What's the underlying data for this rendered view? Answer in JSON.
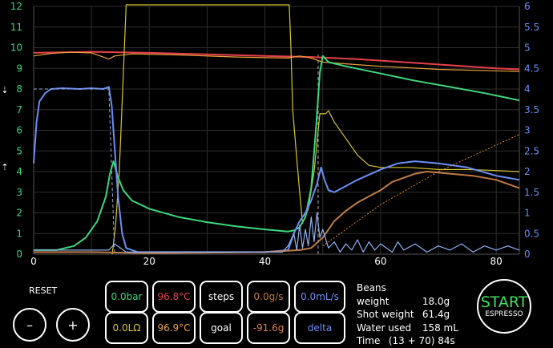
{
  "colors": {
    "pressure": "#3ed67e",
    "flow": "#6a8ff5",
    "temperature": "#e8404a",
    "resistance": "#d8c62b",
    "weight": "#c07c45",
    "mix_temp": "#e8a23b",
    "delta": "#8fb0f0",
    "grid": "#2e2e2e"
  },
  "chart_data": {
    "type": "line",
    "xlim": [
      0,
      84
    ],
    "ylim_left": [
      0,
      12
    ],
    "ylim_right": [
      0,
      6
    ],
    "x_ticks": [
      "0",
      "20",
      "40",
      "60",
      "80"
    ],
    "y_ticks_left": [
      "0",
      "1",
      "2",
      "3",
      "4",
      "5",
      "6",
      "7",
      "8",
      "9",
      "10",
      "11",
      "12"
    ],
    "y_ticks_right": [
      "0",
      "0.5",
      "1",
      "1.5",
      "2",
      "2.5",
      "3",
      "3.5",
      "4",
      "4.5",
      "5",
      "5.5",
      "6"
    ],
    "series": [
      {
        "key": "temperature",
        "axis": "left",
        "points": [
          [
            0,
            9.75
          ],
          [
            10,
            9.8
          ],
          [
            20,
            9.75
          ],
          [
            30,
            9.68
          ],
          [
            40,
            9.6
          ],
          [
            48,
            9.55
          ],
          [
            56,
            9.45
          ],
          [
            64,
            9.3
          ],
          [
            72,
            9.15
          ],
          [
            80,
            9.0
          ],
          [
            84,
            8.95
          ]
        ]
      },
      {
        "key": "mix_temp",
        "axis": "left",
        "points": [
          [
            0,
            9.6
          ],
          [
            3,
            9.72
          ],
          [
            6,
            9.78
          ],
          [
            10,
            9.75
          ],
          [
            12,
            9.55
          ],
          [
            13,
            9.45
          ],
          [
            14,
            9.6
          ],
          [
            17,
            9.7
          ],
          [
            25,
            9.65
          ],
          [
            35,
            9.55
          ],
          [
            44,
            9.5
          ],
          [
            46,
            9.6
          ],
          [
            48,
            9.5
          ],
          [
            50,
            9.3
          ],
          [
            55,
            9.2
          ],
          [
            60,
            9.1
          ],
          [
            70,
            8.95
          ],
          [
            84,
            8.85
          ]
        ]
      },
      {
        "key": "resistance",
        "axis": "left",
        "points": [
          [
            13.6,
            0
          ],
          [
            14.2,
            1.5
          ],
          [
            14.8,
            4
          ],
          [
            15.4,
            8
          ],
          [
            16,
            12.5
          ],
          [
            44.2,
            12.5
          ],
          [
            44.5,
            10
          ],
          [
            44.8,
            7
          ],
          [
            45.4,
            5
          ],
          [
            46,
            3
          ],
          [
            46.5,
            1.5
          ],
          [
            47.5,
            2.2
          ],
          [
            48.5,
            4
          ],
          [
            49.5,
            6.8
          ],
          [
            50.5,
            6.8
          ],
          [
            51,
            6.95
          ],
          [
            52,
            6.4
          ],
          [
            54,
            5.6
          ],
          [
            56,
            4.8
          ],
          [
            58,
            4.3
          ],
          [
            60,
            4.2
          ],
          [
            65,
            4.2
          ],
          [
            70,
            4.1
          ],
          [
            75,
            4.1
          ],
          [
            80,
            4.05
          ],
          [
            84,
            4.0
          ]
        ]
      },
      {
        "key": "pressure",
        "axis": "left",
        "points": [
          [
            0,
            0.2
          ],
          [
            4,
            0.2
          ],
          [
            7,
            0.4
          ],
          [
            9,
            0.8
          ],
          [
            11,
            1.6
          ],
          [
            12.5,
            2.8
          ],
          [
            13.2,
            3.9
          ],
          [
            13.8,
            4.5
          ],
          [
            14.5,
            3.8
          ],
          [
            15.5,
            3.1
          ],
          [
            17,
            2.6
          ],
          [
            20,
            2.2
          ],
          [
            25,
            1.8
          ],
          [
            30,
            1.55
          ],
          [
            35,
            1.35
          ],
          [
            40,
            1.2
          ],
          [
            44,
            1.1
          ],
          [
            45,
            1.15
          ],
          [
            46,
            1.3
          ],
          [
            47,
            1.8
          ],
          [
            48,
            3.2
          ],
          [
            48.8,
            6
          ],
          [
            49.5,
            8.8
          ],
          [
            50,
            9.6
          ],
          [
            51,
            9.3
          ],
          [
            54,
            9.1
          ],
          [
            60,
            8.75
          ],
          [
            66,
            8.4
          ],
          [
            72,
            8.1
          ],
          [
            78,
            7.8
          ],
          [
            84,
            7.45
          ]
        ]
      },
      {
        "key": "flow",
        "axis": "right",
        "points": [
          [
            0,
            2.2
          ],
          [
            0.5,
            3.2
          ],
          [
            1,
            3.7
          ],
          [
            2,
            3.9
          ],
          [
            3,
            4.0
          ],
          [
            5,
            4.02
          ],
          [
            8,
            4.0
          ],
          [
            10,
            4.02
          ],
          [
            12,
            4.0
          ],
          [
            13,
            4.05
          ],
          [
            13.5,
            3.6
          ],
          [
            14,
            2.6
          ],
          [
            14.6,
            1.4
          ],
          [
            15.3,
            0.5
          ],
          [
            16,
            0.15
          ],
          [
            18,
            0.05
          ],
          [
            40,
            0.05
          ],
          [
            44,
            0.1
          ],
          [
            45,
            0.5
          ],
          [
            46,
            0.8
          ],
          [
            47,
            1.0
          ],
          [
            48,
            1.3
          ],
          [
            49,
            1.7
          ],
          [
            49.7,
            2.1
          ],
          [
            50.3,
            1.8
          ],
          [
            51,
            1.55
          ],
          [
            52,
            1.5
          ],
          [
            54,
            1.65
          ],
          [
            56,
            1.8
          ],
          [
            60,
            2.05
          ],
          [
            63,
            2.2
          ],
          [
            66,
            2.25
          ],
          [
            70,
            2.2
          ],
          [
            75,
            2.1
          ],
          [
            80,
            1.9
          ],
          [
            84,
            1.8
          ]
        ]
      },
      {
        "key": "weight",
        "axis": "left",
        "points": [
          [
            0,
            0.1
          ],
          [
            10,
            0.1
          ],
          [
            20,
            0.05
          ],
          [
            40,
            0.1
          ],
          [
            46,
            0.2
          ],
          [
            48,
            0.3
          ],
          [
            50,
            0.8
          ],
          [
            52,
            1.6
          ],
          [
            54,
            2.1
          ],
          [
            56,
            2.5
          ],
          [
            58,
            2.8
          ],
          [
            60,
            3.1
          ],
          [
            62,
            3.5
          ],
          [
            64,
            3.7
          ],
          [
            66,
            3.9
          ],
          [
            68,
            4.0
          ],
          [
            72,
            3.9
          ],
          [
            76,
            3.8
          ],
          [
            80,
            3.6
          ],
          [
            84,
            3.2
          ]
        ]
      },
      {
        "key": "delta",
        "axis": "right",
        "style": "spiky",
        "points": [
          [
            0,
            0.1
          ],
          [
            13,
            0.1
          ],
          [
            14,
            0.25
          ],
          [
            16,
            0.05
          ],
          [
            43,
            0.05
          ],
          [
            44,
            0.2
          ],
          [
            45,
            0.5
          ],
          [
            45.5,
            0.1
          ],
          [
            46,
            0.7
          ],
          [
            46.5,
            0.15
          ],
          [
            47,
            0.6
          ],
          [
            47.5,
            0.2
          ],
          [
            48,
            0.9
          ],
          [
            48.5,
            0.3
          ],
          [
            49,
            1.0
          ],
          [
            49.5,
            0.4
          ],
          [
            50,
            0.6
          ],
          [
            51,
            0.15
          ],
          [
            52,
            0.3
          ],
          [
            53,
            0.05
          ],
          [
            54,
            0.25
          ],
          [
            55,
            0.1
          ],
          [
            56,
            0.35
          ],
          [
            57,
            0.05
          ],
          [
            58,
            0.3
          ],
          [
            59,
            0.1
          ],
          [
            60,
            0.25
          ],
          [
            62,
            0.05
          ],
          [
            63,
            0.3
          ],
          [
            64,
            0.1
          ],
          [
            66,
            0.25
          ],
          [
            68,
            0.05
          ],
          [
            70,
            0.2
          ],
          [
            72,
            0.1
          ],
          [
            74,
            0.25
          ],
          [
            76,
            0.05
          ],
          [
            78,
            0.2
          ],
          [
            80,
            0.1
          ],
          [
            82,
            0.2
          ],
          [
            84,
            0.1
          ]
        ]
      },
      {
        "key": "weight_goal",
        "axis": "right",
        "style": "dotted-orange",
        "points": [
          [
            50,
            0.2
          ],
          [
            60,
            1.2
          ],
          [
            70,
            2.0
          ],
          [
            84,
            2.9
          ]
        ]
      },
      {
        "key": "flow_goal",
        "axis": "right",
        "style": "dashed",
        "points": [
          [
            0,
            4
          ],
          [
            13,
            4
          ],
          [
            14,
            0
          ]
        ]
      }
    ],
    "dashed_vlines": [
      49.2
    ]
  },
  "controls": {
    "reset_label": "RESET",
    "minus_label": "–",
    "plus_label": "+"
  },
  "tiles": {
    "pressure": "0.0bar",
    "temperature": "96.8°C",
    "steps": "steps",
    "weight": "0.0g/s",
    "flow": "0.0mL/s",
    "resistance": "0.0LΩ",
    "mix_temp": "96.9°C",
    "goal": "goal",
    "weight_goal": "-91.6g",
    "delta": "delta"
  },
  "info": {
    "beans_label": "Beans weight",
    "beans_value": "18.0g",
    "shot_label": "Shot weight",
    "shot_value": "61.4g",
    "water_label": "Water used",
    "water_value": "158 mL",
    "time_label": "Time",
    "time_value": "(13 + 70)  84s"
  },
  "start": {
    "big": "START",
    "small": "ESPRESSO"
  }
}
